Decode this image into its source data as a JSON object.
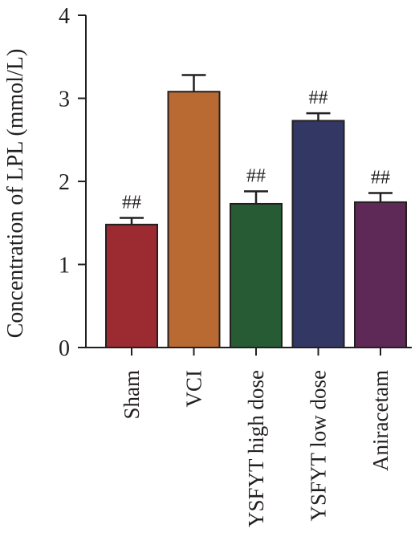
{
  "chart_data": {
    "type": "bar",
    "title": "",
    "xlabel": "",
    "ylabel": "Concentration of LPL (mmol/L)",
    "ylim": [
      0,
      4
    ],
    "yticks": [
      "0",
      "1",
      "2",
      "3",
      "4"
    ],
    "grid": false,
    "categories": [
      "Sham",
      "VCI",
      "YSFYT high dose",
      "YSFYT low dose",
      "Aniracetam"
    ],
    "values": [
      1.48,
      3.08,
      1.73,
      2.73,
      1.75
    ],
    "errors": [
      0.08,
      0.2,
      0.15,
      0.09,
      0.11
    ],
    "annotations": [
      "##",
      "",
      "##",
      "##",
      "##"
    ],
    "colors": [
      "#9b2a31",
      "#b96a33",
      "#265b34",
      "#333763",
      "#5e2857"
    ]
  }
}
